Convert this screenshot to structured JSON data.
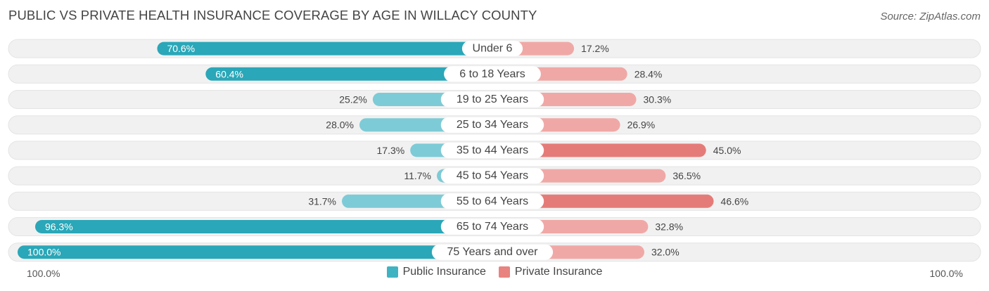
{
  "title": "PUBLIC VS PRIVATE HEALTH INSURANCE COVERAGE BY AGE IN WILLACY COUNTY",
  "source": "Source: ZipAtlas.com",
  "axis_left_label": "100.0%",
  "axis_right_label": "100.0%",
  "colors": {
    "public_strong": "#2aa7b8",
    "public_light": "#7dcbd6",
    "private_strong": "#e57b78",
    "private_light": "#f0a8a6",
    "row_bg": "#f1f1f1"
  },
  "legend": [
    {
      "label": "Public Insurance",
      "color": "#3fb3c2"
    },
    {
      "label": "Private Insurance",
      "color": "#e8837f"
    }
  ],
  "chart_data": {
    "type": "bar",
    "orientation": "horizontal-diverging",
    "title": "PUBLIC VS PRIVATE HEALTH INSURANCE COVERAGE BY AGE IN WILLACY COUNTY",
    "categories": [
      "Under 6",
      "6 to 18 Years",
      "19 to 25 Years",
      "25 to 34 Years",
      "35 to 44 Years",
      "45 to 54 Years",
      "55 to 64 Years",
      "65 to 74 Years",
      "75 Years and over"
    ],
    "series": [
      {
        "name": "Public Insurance",
        "values": [
          70.6,
          60.4,
          25.2,
          28.0,
          17.3,
          11.7,
          31.7,
          96.3,
          100.0
        ]
      },
      {
        "name": "Private Insurance",
        "values": [
          17.2,
          28.4,
          30.3,
          26.9,
          45.0,
          36.5,
          46.6,
          32.8,
          32.0
        ]
      }
    ],
    "xlim": [
      0,
      100
    ],
    "legend_position": "bottom-center"
  }
}
